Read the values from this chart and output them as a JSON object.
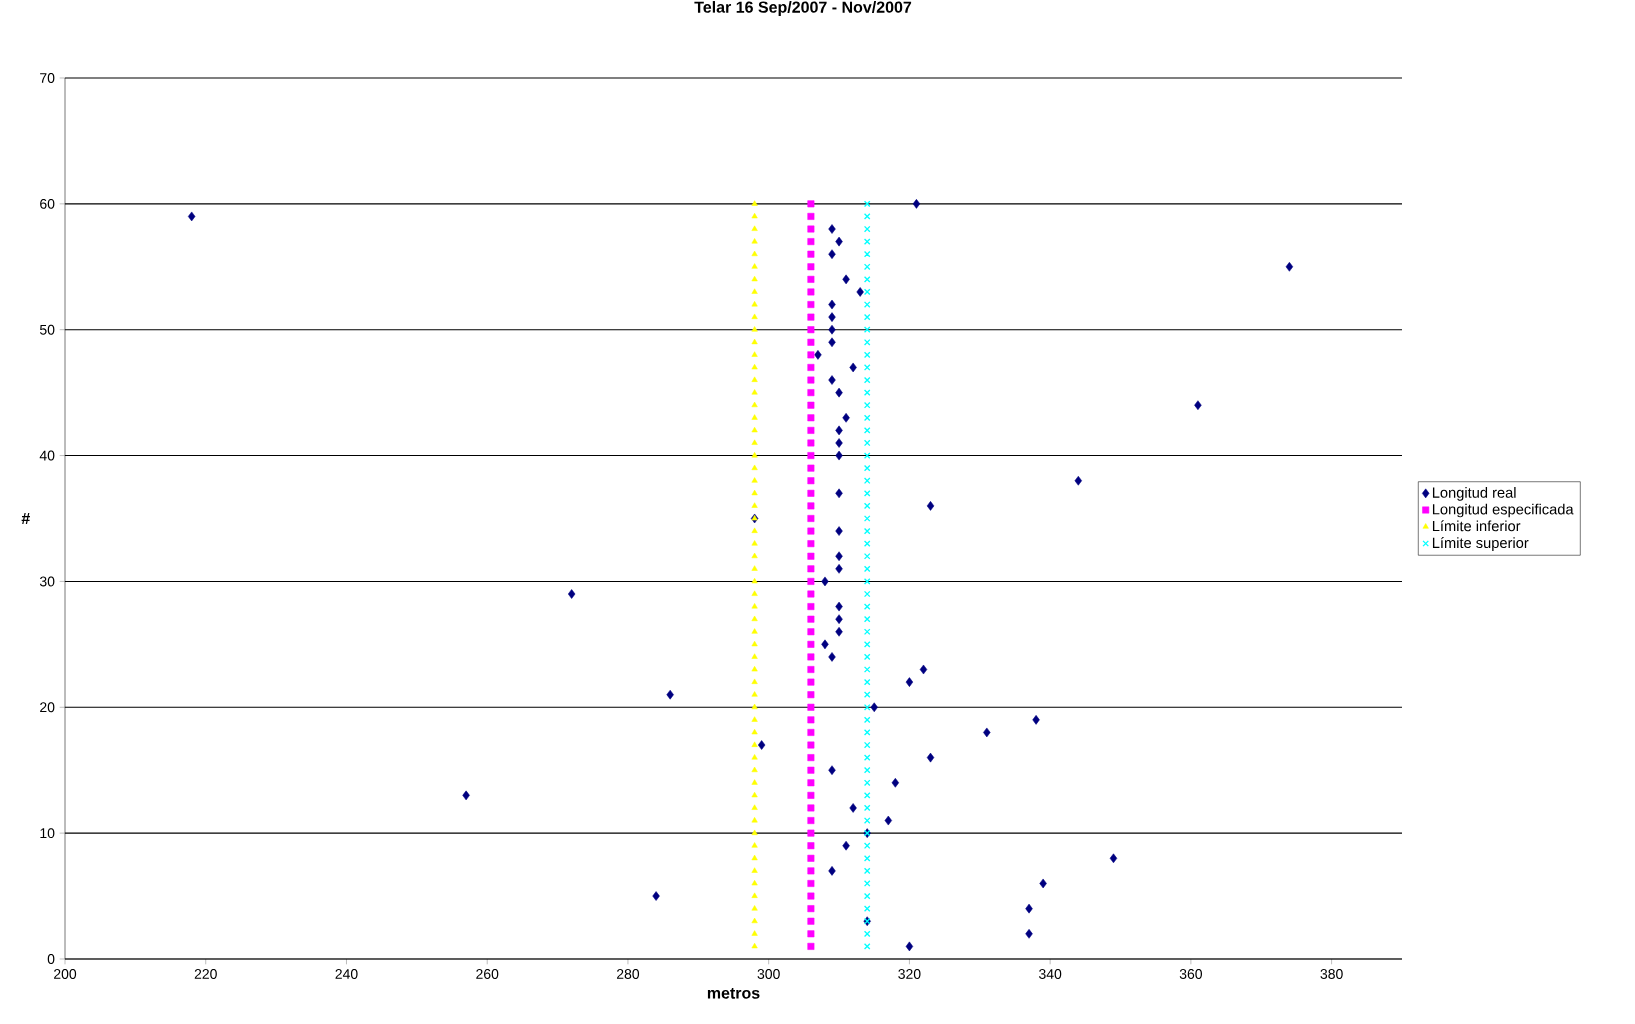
{
  "chart_data": {
    "type": "scatter",
    "title": "Telar 16 Sep/2007 - Nov/2007",
    "xlabel": "metros",
    "ylabel": "#",
    "xlim": [
      200,
      390
    ],
    "xticks": [
      200,
      220,
      240,
      260,
      280,
      300,
      320,
      340,
      360,
      380
    ],
    "ylim": [
      0,
      70
    ],
    "yticks": [
      0,
      10,
      20,
      30,
      40,
      50,
      60,
      70
    ],
    "grid": "y",
    "legend": "right",
    "series": [
      {
        "name": "Longitud real",
        "color": "#000080",
        "marker": "diamond",
        "x": [
          320,
          337,
          314,
          337,
          284,
          339,
          309,
          349,
          311,
          314,
          317,
          312,
          257,
          318,
          309,
          323,
          299,
          331,
          338,
          315,
          286,
          320,
          322,
          309,
          308,
          310,
          310,
          310,
          272,
          308,
          310,
          310,
          310,
          298,
          323,
          310,
          344,
          310,
          310,
          310,
          311,
          361,
          310,
          309,
          312,
          307,
          309,
          309,
          309,
          309,
          313,
          311,
          374,
          309,
          310,
          309,
          218,
          321
        ],
        "values": [
          1,
          2,
          3,
          4,
          5,
          6,
          7,
          8,
          9,
          10,
          11,
          12,
          13,
          14,
          15,
          16,
          17,
          18,
          19,
          20,
          21,
          22,
          23,
          24,
          25,
          26,
          27,
          28,
          29,
          30,
          31,
          32,
          34,
          35,
          36,
          37,
          38,
          40,
          41,
          42,
          43,
          44,
          45,
          46,
          47,
          48,
          49,
          50,
          51,
          52,
          53,
          54,
          55,
          56,
          57,
          58,
          59,
          60
        ]
      },
      {
        "name": "Longitud especificada",
        "color": "#ff00ff",
        "marker": "square",
        "x": [
          306,
          306,
          306,
          306,
          306,
          306,
          306,
          306,
          306,
          306,
          306,
          306,
          306,
          306,
          306,
          306,
          306,
          306,
          306,
          306,
          306,
          306,
          306,
          306,
          306,
          306,
          306,
          306,
          306,
          306,
          306,
          306,
          306,
          306,
          306,
          306,
          306,
          306,
          306,
          306,
          306,
          306,
          306,
          306,
          306,
          306,
          306,
          306,
          306,
          306,
          306,
          306,
          306,
          306,
          306,
          306,
          306,
          306,
          306,
          306
        ],
        "values": [
          1,
          2,
          3,
          4,
          5,
          6,
          7,
          8,
          9,
          10,
          11,
          12,
          13,
          14,
          15,
          16,
          17,
          18,
          19,
          20,
          21,
          22,
          23,
          24,
          25,
          26,
          27,
          28,
          29,
          30,
          31,
          32,
          33,
          34,
          35,
          36,
          37,
          38,
          39,
          40,
          41,
          42,
          43,
          44,
          45,
          46,
          47,
          48,
          49,
          50,
          51,
          52,
          53,
          54,
          55,
          56,
          57,
          58,
          59,
          60
        ]
      },
      {
        "name": "Límite inferior",
        "color": "#ffff00",
        "marker": "triangle",
        "x": [
          298,
          298,
          298,
          298,
          298,
          298,
          298,
          298,
          298,
          298,
          298,
          298,
          298,
          298,
          298,
          298,
          298,
          298,
          298,
          298,
          298,
          298,
          298,
          298,
          298,
          298,
          298,
          298,
          298,
          298,
          298,
          298,
          298,
          298,
          298,
          298,
          298,
          298,
          298,
          298,
          298,
          298,
          298,
          298,
          298,
          298,
          298,
          298,
          298,
          298,
          298,
          298,
          298,
          298,
          298,
          298,
          298,
          298,
          298,
          298
        ],
        "values": [
          1,
          2,
          3,
          4,
          5,
          6,
          7,
          8,
          9,
          10,
          11,
          12,
          13,
          14,
          15,
          16,
          17,
          18,
          19,
          20,
          21,
          22,
          23,
          24,
          25,
          26,
          27,
          28,
          29,
          30,
          31,
          32,
          33,
          34,
          35,
          36,
          37,
          38,
          39,
          40,
          41,
          42,
          43,
          44,
          45,
          46,
          47,
          48,
          49,
          50,
          51,
          52,
          53,
          54,
          55,
          56,
          57,
          58,
          59,
          60
        ]
      },
      {
        "name": "Límite superior",
        "color": "#00ffff",
        "marker": "cross",
        "x": [
          314,
          314,
          314,
          314,
          314,
          314,
          314,
          314,
          314,
          314,
          314,
          314,
          314,
          314,
          314,
          314,
          314,
          314,
          314,
          314,
          314,
          314,
          314,
          314,
          314,
          314,
          314,
          314,
          314,
          314,
          314,
          314,
          314,
          314,
          314,
          314,
          314,
          314,
          314,
          314,
          314,
          314,
          314,
          314,
          314,
          314,
          314,
          314,
          314,
          314,
          314,
          314,
          314,
          314,
          314,
          314,
          314,
          314,
          314,
          314
        ],
        "values": [
          1,
          2,
          3,
          4,
          5,
          6,
          7,
          8,
          9,
          10,
          11,
          12,
          13,
          14,
          15,
          16,
          17,
          18,
          19,
          20,
          21,
          22,
          23,
          24,
          25,
          26,
          27,
          28,
          29,
          30,
          31,
          32,
          33,
          34,
          35,
          36,
          37,
          38,
          39,
          40,
          41,
          42,
          43,
          44,
          45,
          46,
          47,
          48,
          49,
          50,
          51,
          52,
          53,
          54,
          55,
          56,
          57,
          58,
          59,
          60
        ]
      }
    ]
  }
}
